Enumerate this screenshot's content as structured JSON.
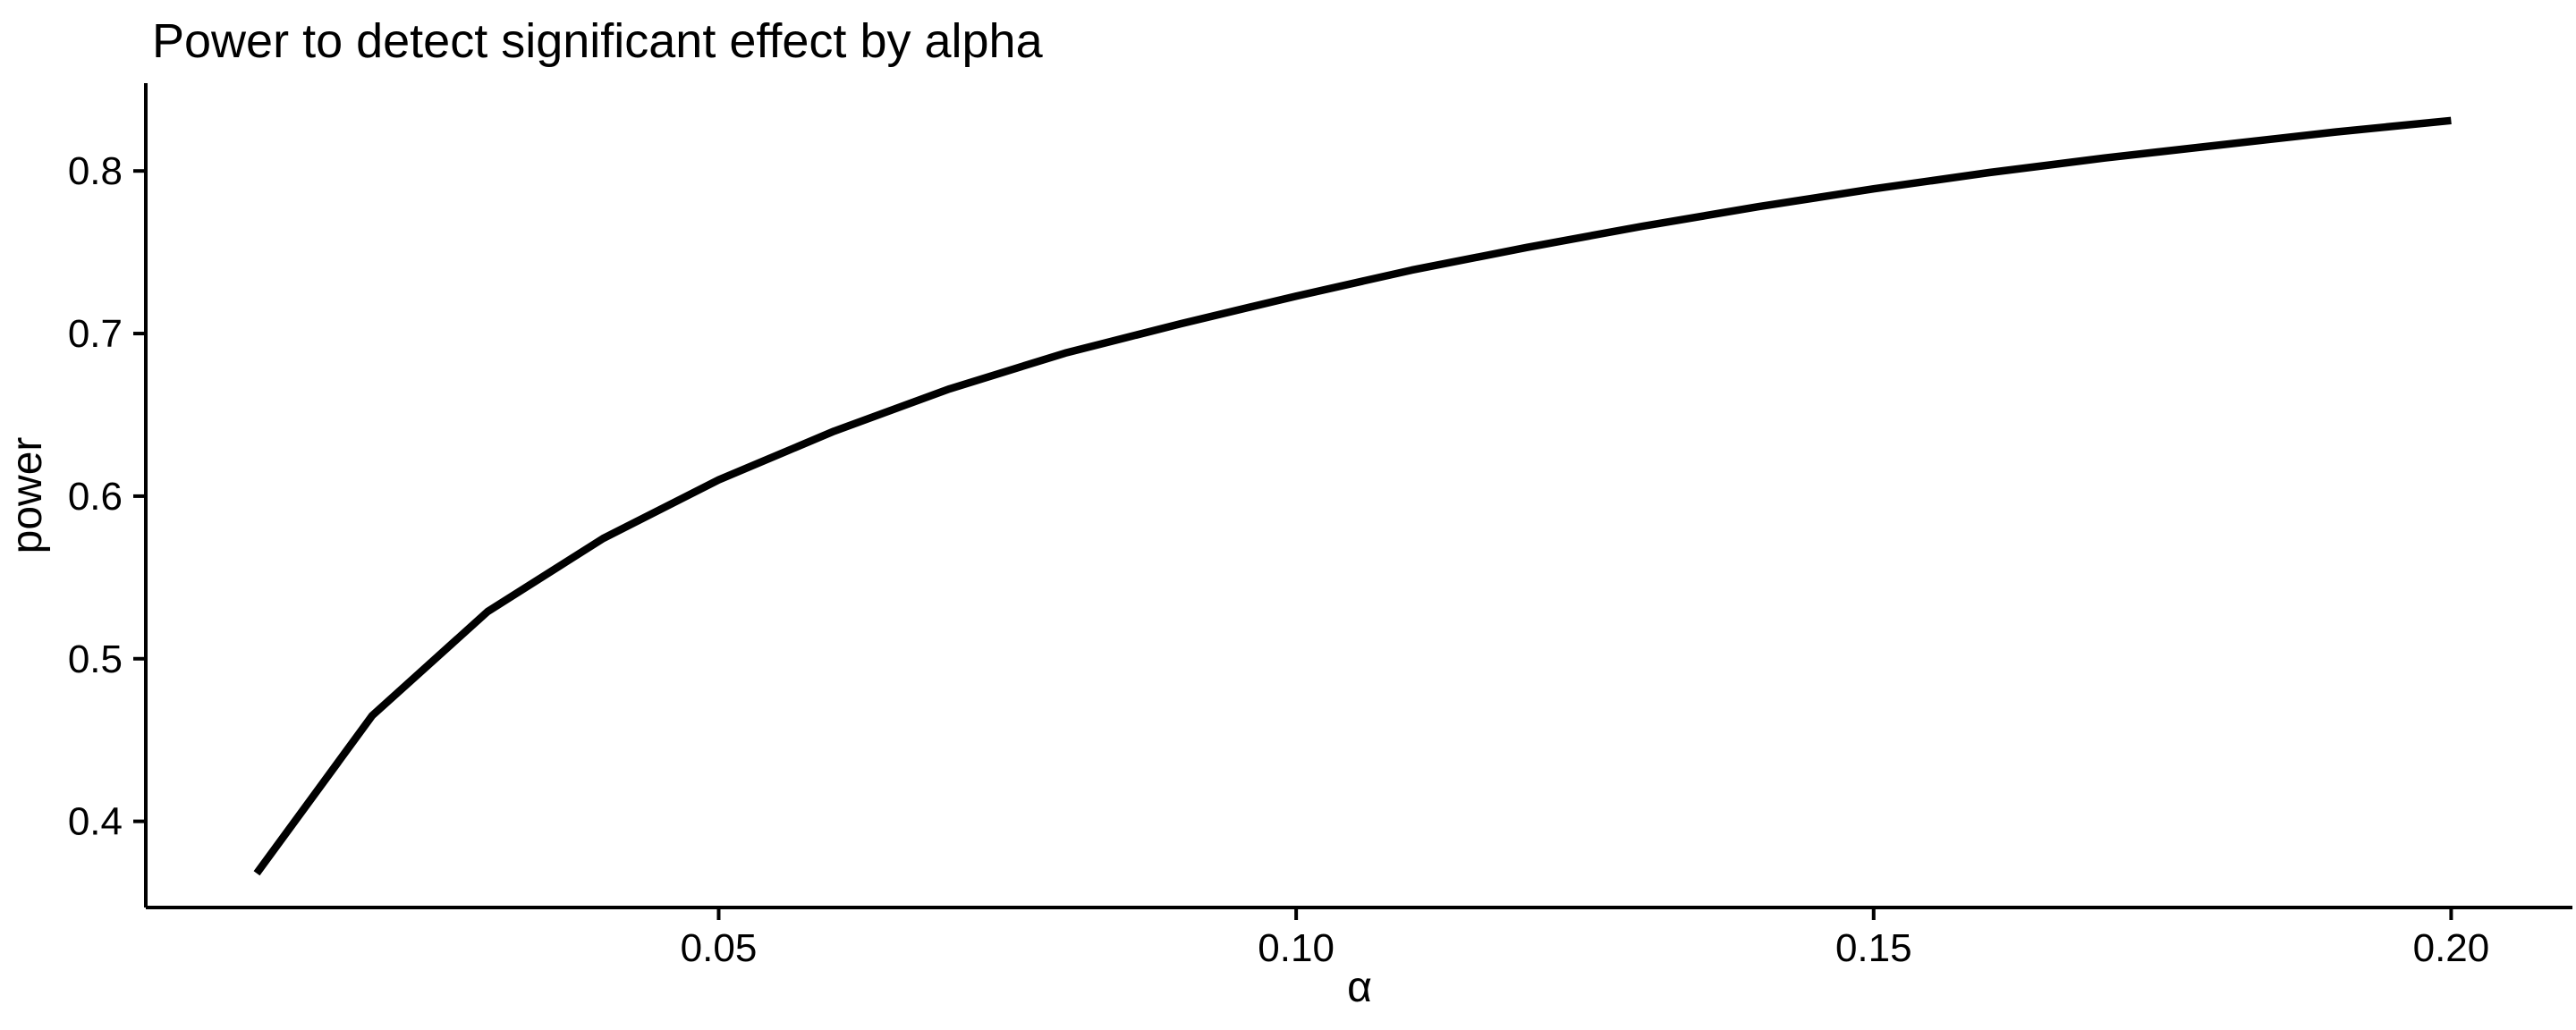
{
  "chart_data": {
    "type": "line",
    "title": "Power to detect significant effect by alpha",
    "xlabel": "α",
    "ylabel": "power",
    "x": [
      0.01,
      0.02,
      0.03,
      0.04,
      0.05,
      0.06,
      0.07,
      0.08,
      0.09,
      0.1,
      0.11,
      0.12,
      0.13,
      0.14,
      0.15,
      0.16,
      0.17,
      0.18,
      0.19,
      0.2
    ],
    "series": [
      {
        "name": "power",
        "values": [
          0.368,
          0.465,
          0.529,
          0.574,
          0.61,
          0.64,
          0.666,
          0.688,
          0.706,
          0.723,
          0.739,
          0.753,
          0.766,
          0.778,
          0.789,
          0.799,
          0.808,
          0.816,
          0.824,
          0.831
        ]
      }
    ],
    "x_ticks": {
      "values": [
        0.05,
        0.1,
        0.15,
        0.2
      ],
      "labels": [
        "0.05",
        "0.10",
        "0.15",
        "0.20"
      ]
    },
    "y_ticks": {
      "values": [
        0.4,
        0.5,
        0.6,
        0.7,
        0.8
      ],
      "labels": [
        "0.4",
        "0.5",
        "0.6",
        "0.7",
        "0.8"
      ]
    },
    "xlim": [
      0.0004,
      0.2105
    ],
    "ylim": [
      0.347,
      0.854
    ],
    "grid": false,
    "legend": "none",
    "line_color": "#000000",
    "axis_color": "#000000",
    "text_color": "#000000",
    "background": "#FFFFFF"
  }
}
